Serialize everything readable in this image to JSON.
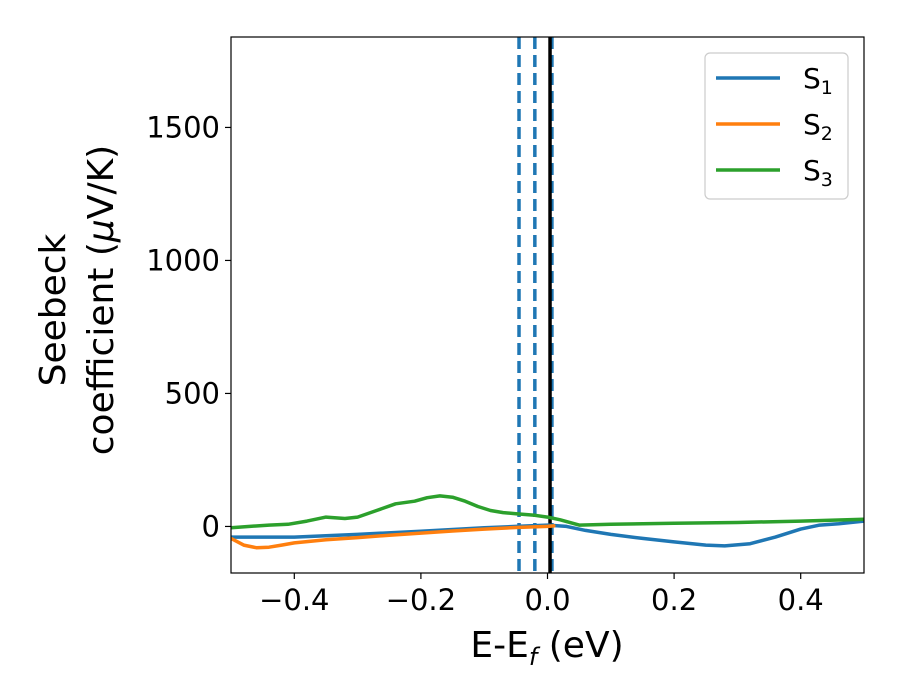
{
  "chart_data": {
    "type": "line",
    "title": "",
    "xlabel": {
      "main": "E-E",
      "sub": "f",
      "suffix": " (eV)"
    },
    "ylabel": {
      "line1": "Seebeck",
      "line2_prefix": "coefficient  (",
      "line2_mu": "μ",
      "line2_suffix": "V/K)"
    },
    "xlim": [
      -0.5,
      0.5
    ],
    "ylim": [
      -175,
      1840
    ],
    "xticks": [
      -0.4,
      -0.2,
      0.0,
      0.2,
      0.4
    ],
    "xtick_labels": [
      "−0.4",
      "−0.2",
      "0.0",
      "0.2",
      "0.4"
    ],
    "yticks": [
      0,
      500,
      1000,
      1500
    ],
    "ytick_labels": [
      "0",
      "500",
      "1000",
      "1500"
    ],
    "grid": false,
    "legend_position": "top-right",
    "series": [
      {
        "name": "S",
        "sub": "1",
        "color": "#1f77b4",
        "x": [
          -0.5,
          -0.4,
          -0.3,
          -0.2,
          -0.1,
          -0.05,
          0.0,
          0.03,
          0.06,
          0.1,
          0.15,
          0.2,
          0.25,
          0.28,
          0.32,
          0.36,
          0.4,
          0.43,
          0.46,
          0.5
        ],
        "y": [
          -40,
          -40,
          -30,
          -18,
          -5,
          0,
          5,
          0,
          -15,
          -30,
          -45,
          -58,
          -70,
          -73,
          -65,
          -40,
          -10,
          5,
          10,
          20
        ]
      },
      {
        "name": "S",
        "sub": "2",
        "color": "#ff7f0e",
        "x": [
          -0.5,
          -0.48,
          -0.46,
          -0.44,
          -0.42,
          -0.4,
          -0.35,
          -0.3,
          -0.25,
          -0.2,
          -0.15,
          -0.1,
          -0.05,
          0.0,
          0.01
        ],
        "y": [
          -45,
          -70,
          -80,
          -78,
          -70,
          -62,
          -50,
          -42,
          -33,
          -25,
          -17,
          -10,
          -4,
          0,
          2
        ]
      },
      {
        "name": "S",
        "sub": "3",
        "color": "#2ca02c",
        "x": [
          -0.5,
          -0.47,
          -0.44,
          -0.41,
          -0.38,
          -0.35,
          -0.32,
          -0.3,
          -0.27,
          -0.24,
          -0.21,
          -0.19,
          -0.17,
          -0.15,
          -0.13,
          -0.11,
          -0.09,
          -0.07,
          -0.05,
          -0.02,
          0.0,
          0.02,
          0.05,
          0.1,
          0.2,
          0.3,
          0.4,
          0.5
        ],
        "y": [
          -5,
          0,
          5,
          8,
          20,
          35,
          30,
          35,
          60,
          85,
          95,
          108,
          115,
          110,
          95,
          75,
          60,
          52,
          48,
          42,
          35,
          25,
          5,
          8,
          12,
          15,
          20,
          27
        ]
      }
    ],
    "vlines": [
      {
        "x": -0.045,
        "color": "#1f77b4",
        "style": "dashed"
      },
      {
        "x": -0.02,
        "color": "#1f77b4",
        "style": "dashed"
      },
      {
        "x": 0.007,
        "color": "#1f77b4",
        "style": "dashed"
      },
      {
        "x": 0.004,
        "color": "#000000",
        "style": "solid"
      }
    ]
  }
}
